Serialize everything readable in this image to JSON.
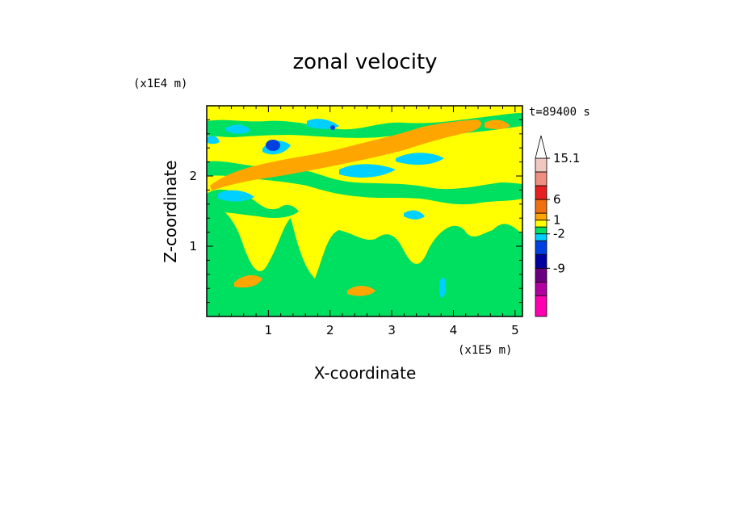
{
  "chart_data": {
    "type": "heatmap",
    "title": "zonal velocity",
    "xlabel": "X-coordinate",
    "ylabel": "Z-coordinate",
    "x_unit": "(x1E5 m)",
    "y_unit": "(x1E4 m)",
    "time_label": "t=89400 s",
    "xlim": [
      0,
      5.12
    ],
    "ylim": [
      0,
      3.0
    ],
    "x_ticks": [
      "1",
      "2",
      "3",
      "4",
      "5"
    ],
    "y_ticks": [
      "1",
      "2"
    ],
    "colorbar": {
      "labels": [
        "15.1",
        "6",
        "1",
        "-2",
        "-9"
      ],
      "bands": [
        {
          "color": "#f0c8c0"
        },
        {
          "color": "#ee8f80"
        },
        {
          "color": "#e62020"
        },
        {
          "color": "#f07010"
        },
        {
          "color": "#ffa500"
        },
        {
          "color": "#ffff00"
        },
        {
          "color": "#00e060"
        },
        {
          "color": "#00d0ff"
        },
        {
          "color": "#0040e0"
        },
        {
          "color": "#0000a0"
        },
        {
          "color": "#6a0080"
        },
        {
          "color": "#b000a0"
        },
        {
          "color": "#ff00b0"
        }
      ],
      "extend_color": "#ffffff"
    },
    "field": {
      "description": "2D zonal velocity field, mostly yellow (~0 to 1) with green (~-1) patches, orange/cyan bands aloft",
      "dominant_colors": [
        "#ffff00",
        "#00e060",
        "#ffa500",
        "#00d0ff",
        "#0040e0"
      ]
    }
  }
}
